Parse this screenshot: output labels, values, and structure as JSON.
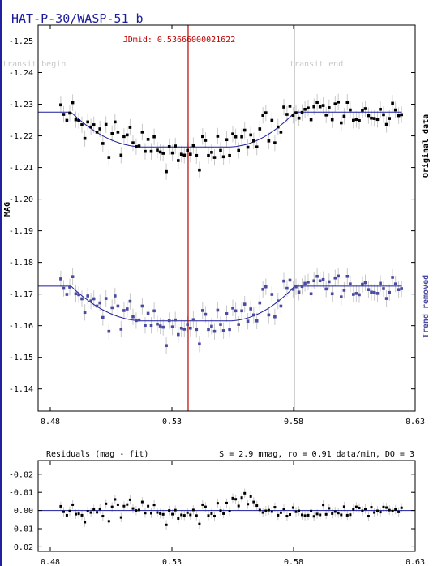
{
  "title": "HAT-P-30/WASP-51 b",
  "jdmid_label": "JDmid: 0.53666000021622",
  "transit_begin_label": "transit begin",
  "transit_end_label": "transit end",
  "ylabel": "MAG",
  "original_label": "Original data",
  "trend_label": "Trend removed",
  "residuals_label": "Residuals (mag - fit)",
  "stats_label": "S = 2.9 mmag, ro = 0.91 data/min, DQ = 3",
  "colors": {
    "original": "#000000",
    "trend": "#4a4aa0",
    "model": "#1c1c9c",
    "jdmid": "#c00000",
    "errorbar": "#c8c8c8"
  },
  "chart_data": [
    {
      "type": "scatter",
      "title": "",
      "xlabel": "",
      "ylabel": "MAG",
      "xlim": [
        0.475,
        0.63
      ],
      "ylim": [
        -1.255,
        -1.133
      ],
      "x_ticks": [
        0.48,
        0.53,
        0.58,
        0.63
      ],
      "x_tick_labels": [
        "0.48",
        "0.53",
        "0.58",
        "0.63"
      ],
      "y_ticks": [
        -1.25,
        -1.24,
        -1.23,
        -1.22,
        -1.21,
        -1.2,
        -1.19,
        -1.18,
        -1.17,
        -1.16,
        -1.15,
        -1.14
      ],
      "y_tick_labels": [
        "-1.25",
        "-1.24",
        "-1.23",
        "-1.22",
        "-1.21",
        "-1.20",
        "-1.19",
        "-1.18",
        "-1.17",
        "-1.16",
        "-1.15",
        "-1.14"
      ],
      "transit_begin": 0.4885,
      "transit_end": 0.5805,
      "jdmid": 0.53666,
      "transit_depth": 0.011,
      "series": [
        {
          "name": "Original data",
          "baseline": -1.2275,
          "x": [
            0.4843,
            0.4855,
            0.4868,
            0.488,
            0.4892,
            0.4905,
            0.4917,
            0.493,
            0.4942,
            0.4954,
            0.4967,
            0.4979,
            0.4992,
            0.5004,
            0.5016,
            0.5029,
            0.5041,
            0.5054,
            0.5066,
            0.5078,
            0.5091,
            0.5103,
            0.5116,
            0.5128,
            0.514,
            0.5153,
            0.5165,
            0.5178,
            0.519,
            0.5202,
            0.5215,
            0.5227,
            0.524,
            0.5252,
            0.5264,
            0.5277,
            0.5289,
            0.5302,
            0.5314,
            0.5326,
            0.5339,
            0.5351,
            0.5364,
            0.5376,
            0.5388,
            0.5401,
            0.5413,
            0.5426,
            0.5438,
            0.545,
            0.5463,
            0.5475,
            0.5488,
            0.55,
            0.5512,
            0.5525,
            0.5537,
            0.555,
            0.5562,
            0.5574,
            0.5587,
            0.5599,
            0.5612,
            0.5624,
            0.5636,
            0.5649,
            0.5661,
            0.5674,
            0.5686,
            0.5698,
            0.5711,
            0.5723,
            0.5736,
            0.5748,
            0.576,
            0.5773,
            0.5785,
            0.5798,
            0.581,
            0.5822,
            0.5835,
            0.5847,
            0.586,
            0.5872,
            0.5884,
            0.5897,
            0.5909,
            0.5922,
            0.5934,
            0.5946,
            0.5959,
            0.5971,
            0.5984,
            0.5996,
            0.6008,
            0.6021,
            0.6033,
            0.6046,
            0.6058,
            0.607,
            0.6083,
            0.6095,
            0.6108,
            0.612,
            0.6132,
            0.6145,
            0.6157,
            0.617,
            0.6182,
            0.6194,
            0.6207,
            0.6219,
            0.6232,
            0.6244
          ],
          "y": [
            -1.2298,
            -1.2268,
            -1.2249,
            -1.2272,
            -1.2305,
            -1.2251,
            -1.2248,
            -1.2235,
            -1.2192,
            -1.2244,
            -1.2228,
            -1.2235,
            -1.2212,
            -1.2222,
            -1.2176,
            -1.2236,
            -1.2132,
            -1.2207,
            -1.2244,
            -1.2212,
            -1.2139,
            -1.2198,
            -1.2203,
            -1.2227,
            -1.2178,
            -1.2166,
            -1.2168,
            -1.2212,
            -1.2151,
            -1.2189,
            -1.2151,
            -1.2197,
            -1.2155,
            -1.2149,
            -1.2145,
            -1.2087,
            -1.2166,
            -1.2146,
            -1.2168,
            -1.2122,
            -1.2142,
            -1.2139,
            -1.2154,
            -1.2142,
            -1.2169,
            -1.2138,
            -1.2092,
            -1.2198,
            -1.2186,
            -1.2138,
            -1.2148,
            -1.2132,
            -1.2199,
            -1.2154,
            -1.2134,
            -1.2188,
            -1.2138,
            -1.2206,
            -1.2197,
            -1.2154,
            -1.2197,
            -1.2218,
            -1.2164,
            -1.2203,
            -1.2184,
            -1.2165,
            -1.2222,
            -1.2265,
            -1.2273,
            -1.2184,
            -1.2249,
            -1.2178,
            -1.2228,
            -1.2212,
            -1.2291,
            -1.2268,
            -1.2294,
            -1.2265,
            -1.2273,
            -1.2256,
            -1.2274,
            -1.2284,
            -1.2288,
            -1.2251,
            -1.2292,
            -1.2306,
            -1.2292,
            -1.2296,
            -1.2266,
            -1.2289,
            -1.2251,
            -1.2301,
            -1.2307,
            -1.2241,
            -1.2262,
            -1.2306,
            -1.2282,
            -1.2249,
            -1.2252,
            -1.2248,
            -1.2281,
            -1.2286,
            -1.2264,
            -1.2256,
            -1.2255,
            -1.2252,
            -1.2284,
            -1.2267,
            -1.2236,
            -1.2255,
            -1.2303,
            -1.2282,
            -1.2264,
            -1.2267
          ]
        },
        {
          "name": "Trend removed",
          "baseline": -1.1725,
          "x": [
            0.4843,
            0.4855,
            0.4868,
            0.488,
            0.4892,
            0.4905,
            0.4917,
            0.493,
            0.4942,
            0.4954,
            0.4967,
            0.4979,
            0.4992,
            0.5004,
            0.5016,
            0.5029,
            0.5041,
            0.5054,
            0.5066,
            0.5078,
            0.5091,
            0.5103,
            0.5116,
            0.5128,
            0.514,
            0.5153,
            0.5165,
            0.5178,
            0.519,
            0.5202,
            0.5215,
            0.5227,
            0.524,
            0.5252,
            0.5264,
            0.5277,
            0.5289,
            0.5302,
            0.5314,
            0.5326,
            0.5339,
            0.5351,
            0.5364,
            0.5376,
            0.5388,
            0.5401,
            0.5413,
            0.5426,
            0.5438,
            0.545,
            0.5463,
            0.5475,
            0.5488,
            0.55,
            0.5512,
            0.5525,
            0.5537,
            0.555,
            0.5562,
            0.5574,
            0.5587,
            0.5599,
            0.5612,
            0.5624,
            0.5636,
            0.5649,
            0.5661,
            0.5674,
            0.5686,
            0.5698,
            0.5711,
            0.5723,
            0.5736,
            0.5748,
            0.576,
            0.5773,
            0.5785,
            0.5798,
            0.581,
            0.5822,
            0.5835,
            0.5847,
            0.586,
            0.5872,
            0.5884,
            0.5897,
            0.5909,
            0.5922,
            0.5934,
            0.5946,
            0.5959,
            0.5971,
            0.5984,
            0.5996,
            0.6008,
            0.6021,
            0.6033,
            0.6046,
            0.6058,
            0.607,
            0.6083,
            0.6095,
            0.6108,
            0.612,
            0.6132,
            0.6145,
            0.6157,
            0.617,
            0.6182,
            0.6194,
            0.6207,
            0.6219,
            0.6232,
            0.6244
          ],
          "y": [
            -1.1748,
            -1.1718,
            -1.1699,
            -1.1722,
            -1.1755,
            -1.1701,
            -1.1698,
            -1.1685,
            -1.1642,
            -1.1694,
            -1.1678,
            -1.1685,
            -1.1662,
            -1.1672,
            -1.1626,
            -1.1686,
            -1.1582,
            -1.1657,
            -1.1694,
            -1.1662,
            -1.1589,
            -1.1648,
            -1.1653,
            -1.1677,
            -1.1628,
            -1.1616,
            -1.1618,
            -1.1662,
            -1.1601,
            -1.1639,
            -1.1601,
            -1.1647,
            -1.1605,
            -1.1599,
            -1.1595,
            -1.1537,
            -1.1616,
            -1.1596,
            -1.1618,
            -1.1572,
            -1.1592,
            -1.1589,
            -1.1604,
            -1.1592,
            -1.1619,
            -1.1588,
            -1.1542,
            -1.1648,
            -1.1636,
            -1.1588,
            -1.1598,
            -1.1582,
            -1.1649,
            -1.1604,
            -1.1584,
            -1.1638,
            -1.1588,
            -1.1656,
            -1.1647,
            -1.1604,
            -1.1647,
            -1.1668,
            -1.1614,
            -1.1653,
            -1.1634,
            -1.1615,
            -1.1672,
            -1.1715,
            -1.1723,
            -1.1634,
            -1.1699,
            -1.1628,
            -1.1678,
            -1.1662,
            -1.1741,
            -1.1718,
            -1.1744,
            -1.1715,
            -1.1723,
            -1.1706,
            -1.1724,
            -1.1734,
            -1.1738,
            -1.1701,
            -1.1742,
            -1.1756,
            -1.1742,
            -1.1746,
            -1.1716,
            -1.1739,
            -1.1701,
            -1.1751,
            -1.1757,
            -1.1691,
            -1.1712,
            -1.1756,
            -1.1732,
            -1.1699,
            -1.1702,
            -1.1698,
            -1.1731,
            -1.1736,
            -1.1714,
            -1.1706,
            -1.1705,
            -1.1702,
            -1.1734,
            -1.1717,
            -1.1686,
            -1.1705,
            -1.1753,
            -1.1732,
            -1.1714,
            -1.1717
          ]
        }
      ]
    },
    {
      "type": "scatter",
      "title": "Residuals (mag - fit)",
      "xlabel": "",
      "ylabel": "",
      "xlim": [
        0.475,
        0.63
      ],
      "ylim": [
        -0.0275,
        0.0225
      ],
      "x_ticks": [
        0.48,
        0.53,
        0.58,
        0.63
      ],
      "x_tick_labels": [
        "0.48",
        "0.53",
        "0.58",
        "0.63"
      ],
      "y_ticks": [
        -0.02,
        -0.01,
        0.0,
        0.01,
        0.02
      ],
      "y_tick_labels": [
        "-0.02",
        "-0.01",
        "0.00",
        "0.01",
        "0.02"
      ],
      "series": [
        {
          "name": "",
          "x": [
            0.4843,
            0.4855,
            0.4868,
            0.488,
            0.4892,
            0.4905,
            0.4917,
            0.493,
            0.4942,
            0.4954,
            0.4967,
            0.4979,
            0.4992,
            0.5004,
            0.5016,
            0.5029,
            0.5041,
            0.5054,
            0.5066,
            0.5078,
            0.5091,
            0.5103,
            0.5116,
            0.5128,
            0.514,
            0.5153,
            0.5165,
            0.5178,
            0.519,
            0.5202,
            0.5215,
            0.5227,
            0.524,
            0.5252,
            0.5264,
            0.5277,
            0.5289,
            0.5302,
            0.5314,
            0.5326,
            0.5339,
            0.5351,
            0.5364,
            0.5376,
            0.5388,
            0.5401,
            0.5413,
            0.5426,
            0.5438,
            0.545,
            0.5463,
            0.5475,
            0.5488,
            0.55,
            0.5512,
            0.5525,
            0.5537,
            0.555,
            0.5562,
            0.5574,
            0.5587,
            0.5599,
            0.5612,
            0.5624,
            0.5636,
            0.5649,
            0.5661,
            0.5674,
            0.5686,
            0.5698,
            0.5711,
            0.5723,
            0.5736,
            0.5748,
            0.576,
            0.5773,
            0.5785,
            0.5798,
            0.581,
            0.5822,
            0.5835,
            0.5847,
            0.586,
            0.5872,
            0.5884,
            0.5897,
            0.5909,
            0.5922,
            0.5934,
            0.5946,
            0.5959,
            0.5971,
            0.5984,
            0.5996,
            0.6008,
            0.6021,
            0.6033,
            0.6046,
            0.6058,
            0.607,
            0.6083,
            0.6095,
            0.6108,
            0.612,
            0.6132,
            0.6145,
            0.6157,
            0.617,
            0.6182,
            0.6194,
            0.6207,
            0.6219,
            0.6232,
            0.6244
          ],
          "y": [
            -0.0023,
            0.0007,
            0.0026,
            0.0003,
            -0.0032,
            0.002,
            0.0018,
            0.0026,
            0.0064,
            0.0004,
            0.0011,
            -0.0006,
            0.001,
            -0.0008,
            0.0031,
            -0.0037,
            0.0059,
            -0.002,
            -0.0061,
            -0.0032,
            0.0038,
            -0.0024,
            -0.0033,
            -0.0059,
            -0.0011,
            0.0,
            -0.0003,
            -0.0047,
            0.0014,
            -0.0024,
            0.0015,
            -0.0031,
            0.0011,
            0.0017,
            0.0021,
            0.0079,
            0.0,
            0.002,
            -0.0002,
            0.0044,
            0.0024,
            0.0027,
            0.0012,
            0.0024,
            -0.0003,
            0.0028,
            0.0074,
            -0.0032,
            -0.002,
            0.0028,
            0.0017,
            0.0031,
            -0.004,
            0.0001,
            0.0017,
            -0.0041,
            0.0004,
            -0.0068,
            -0.0062,
            -0.0025,
            -0.0071,
            -0.0095,
            -0.0035,
            -0.0077,
            -0.0047,
            -0.0027,
            -0.0003,
            0.0011,
            0.0002,
            -0.0002,
            0.0006,
            -0.0018,
            0.0026,
            0.0012,
            -0.0009,
            0.0031,
            0.0022,
            -0.0016,
            0.0007,
            0.0002,
            0.0024,
            0.0028,
            0.0026,
            0.0003,
            0.0032,
            0.0019,
            0.0024,
            -0.0031,
            0.0021,
            -0.0012,
            0.0017,
            0.0006,
            0.0014,
            0.0024,
            -0.0021,
            0.0026,
            0.0023,
            -0.0007,
            -0.002,
            -0.0014,
            0.0002,
            -0.0009,
            0.0031,
            -0.0018,
            0.0011,
            0.0002,
            0.0009,
            -0.0019,
            -0.0016,
            -0.0002,
            0.0003,
            -0.0005,
            0.0008,
            -0.0015
          ]
        }
      ]
    }
  ]
}
